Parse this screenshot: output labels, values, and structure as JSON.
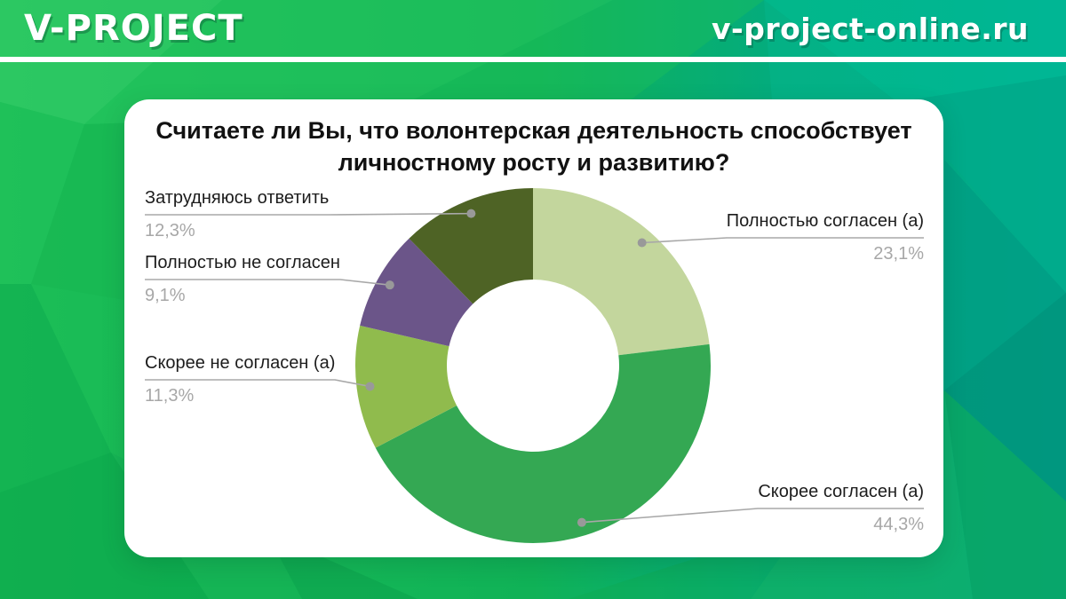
{
  "header": {
    "logo": "V-PROJECT",
    "site": "v-project-online.ru"
  },
  "theme": {
    "brand_green": "#1cbe56",
    "brand_teal": "#00ab8d",
    "card_bg": "#ffffff",
    "title_color": "#111111",
    "label_color": "#1c1c1c",
    "percent_color": "#a7a7a7"
  },
  "chart_data": {
    "type": "pie",
    "donut": true,
    "title": "Считаете ли Вы, что волонтерская деятельность способствует\nличностному росту и развитию?",
    "start_angle_deg": 0,
    "legend_position": "callout-labels",
    "grid": false,
    "leader_line_color": "#a8a8a8",
    "dot_color": "#999999",
    "segments": [
      {
        "label": "Полностью согласен (а)",
        "value": 23.1,
        "value_label": "23,1%",
        "color": "#c3d69d"
      },
      {
        "label": "Скорее согласен (а)",
        "value": 44.3,
        "value_label": "44,3%",
        "color": "#34a853"
      },
      {
        "label": "Скорее не согласен (а)",
        "value": 11.3,
        "value_label": "11,3%",
        "color": "#90bb4d"
      },
      {
        "label": "Полностью не согласен",
        "value": 9.1,
        "value_label": "9,1%",
        "color": "#6b5589"
      },
      {
        "label": "Затрудняюсь ответить",
        "value": 12.3,
        "value_label": "12,3%",
        "color": "#4e6325"
      }
    ]
  }
}
